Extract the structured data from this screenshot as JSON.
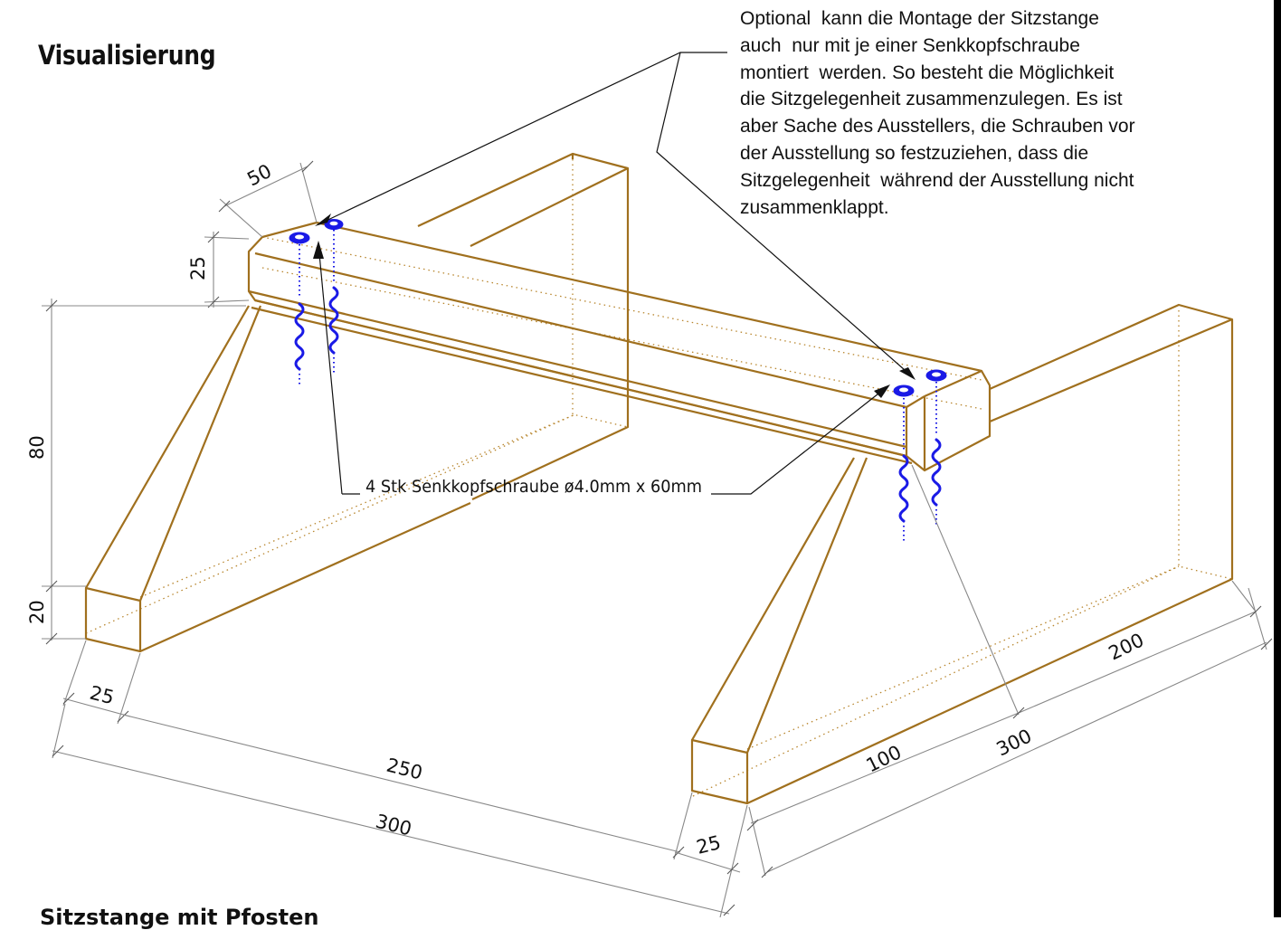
{
  "page": {
    "title": "Visualisierung",
    "footer_text": "Sitzstange mit Pfosten"
  },
  "note": {
    "lines": [
      "Optional  kann die Montage der Sitzstange",
      "auch  nur mit je einer Senkkopfschraube",
      "montiert  werden. So besteht die Möglichkeit",
      "die Sitzgelegenheit zusammenzulegen. Es ist",
      "aber Sache des Ausstellers, die Schrauben vor",
      "der Ausstellung so festzuziehen, dass die",
      "Sitzgelegenheit  während der Ausstellung nicht",
      "zusammenklappt."
    ]
  },
  "callout": {
    "screw_label": "4 Stk Senkkopfschraube  ø4.0mm x 60mm"
  },
  "dimensions": {
    "beam_width": "50",
    "beam_height": "25",
    "post_height": "80",
    "base_height": "20",
    "base_width_left": "25",
    "inner_length": "250",
    "total_length": "300",
    "base_width_right": "25",
    "foot_100": "100",
    "foot_200": "200",
    "foot_300": "300"
  },
  "colors": {
    "wood": "#a0701e",
    "screw": "#1a1ae6",
    "dimension": "#888888"
  }
}
